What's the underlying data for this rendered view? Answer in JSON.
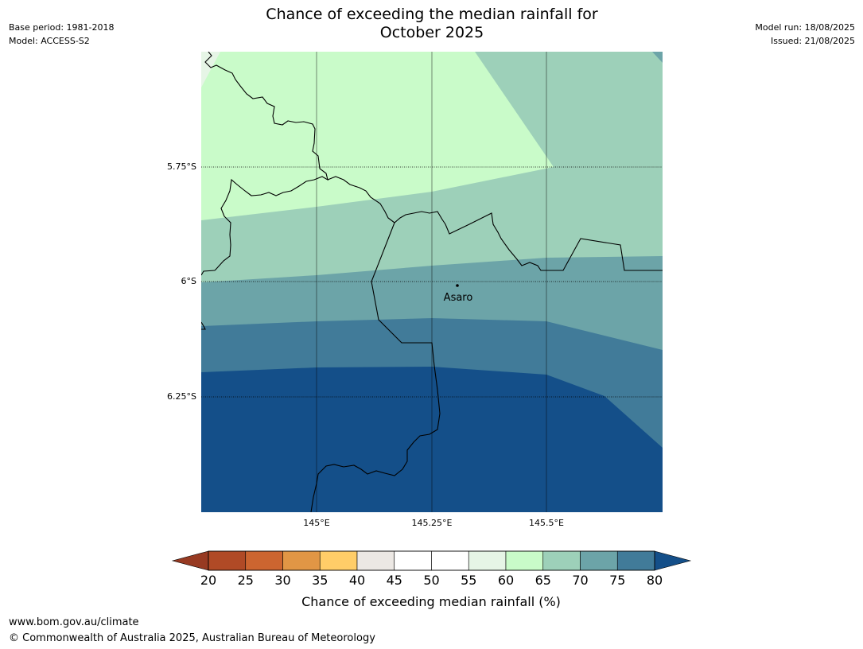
{
  "meta": {
    "base_period": "Base period: 1981-2018",
    "model": "Model: ACCESS-S2",
    "model_run": "Model run: 18/08/2025",
    "issued": "Issued: 21/08/2025"
  },
  "title": {
    "line1": "Chance of exceeding the median rainfall for",
    "line2": "October 2025"
  },
  "map": {
    "lat_labels": [
      "5.75°S",
      "6°S",
      "6.25°S"
    ],
    "lon_labels": [
      "145°E",
      "145.25°E",
      "145.5°E"
    ],
    "place": {
      "name": "Asaro",
      "lon": 145.28,
      "lat": -6.01
    },
    "extent": {
      "lon_min": 144.75,
      "lon_max": 145.75,
      "lat_min": -6.5,
      "lat_max": -5.5
    }
  },
  "colorbar": {
    "ticks": [
      "20",
      "25",
      "30",
      "35",
      "40",
      "45",
      "50",
      "55",
      "60",
      "65",
      "70",
      "75",
      "80"
    ],
    "colors": [
      "#b04a26",
      "#cc6530",
      "#e19645",
      "#ffcd68",
      "#ece8e4",
      "#ffffff",
      "#ffffff",
      "#e6f5e6",
      "#c9fbc9",
      "#9dd0b9",
      "#6ca4a8",
      "#417b99"
    ],
    "under_color": "#973a22",
    "over_color": "#144f89",
    "label": "Chance of exceeding median rainfall (%)"
  },
  "footer": {
    "url": "www.bom.gov.au/climate",
    "copyright": "© Commonwealth of Australia 2025, Australian Bureau of Meteorology"
  }
}
